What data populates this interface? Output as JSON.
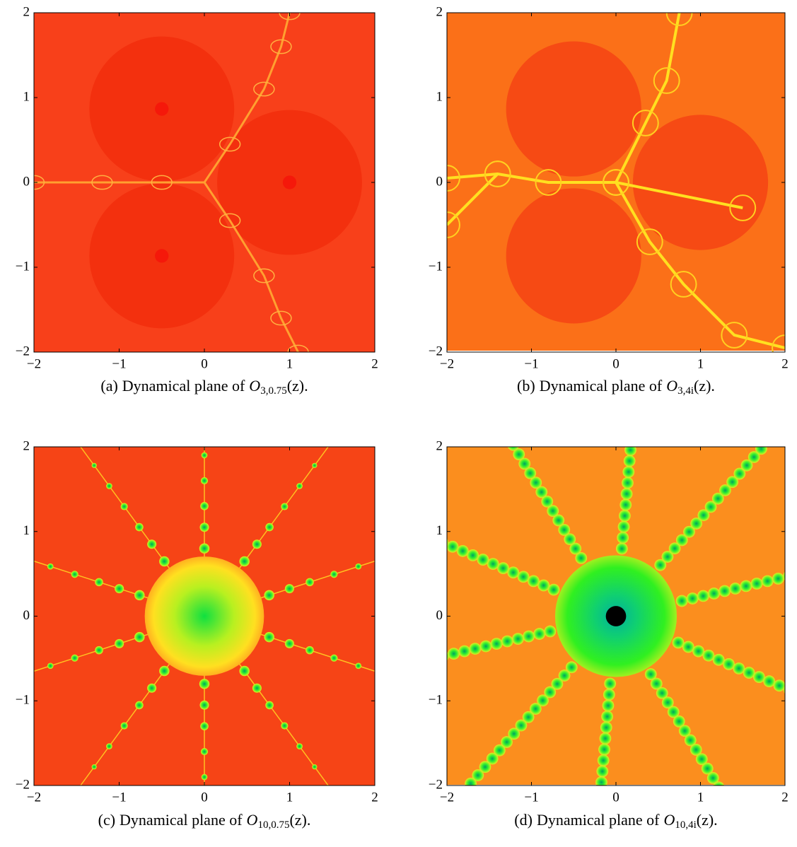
{
  "figures": [
    {
      "xlim": [
        -2,
        2
      ],
      "ylim": [
        -2,
        2
      ],
      "xticks": [
        {
          "value": -2,
          "label": "−2"
        },
        {
          "value": -1,
          "label": "−1"
        },
        0,
        1,
        2
      ],
      "yticks": [
        {
          "value": -2,
          "label": "−2"
        },
        {
          "value": -1,
          "label": "−1"
        },
        0,
        1,
        2
      ],
      "caption": {
        "tag": "(a)",
        "text": "Dynamical plane of",
        "symbol": "O",
        "subscript": "3,0.75",
        "argument": "(z)."
      }
    },
    {
      "xlim": [
        -2,
        2
      ],
      "ylim": [
        -2,
        2
      ],
      "xticks": [
        {
          "value": -2,
          "label": "−2"
        },
        {
          "value": -1,
          "label": "−1"
        },
        0,
        1,
        2
      ],
      "yticks": [
        {
          "value": -2,
          "label": "−2"
        },
        {
          "value": -1,
          "label": "−1"
        },
        0,
        1,
        2
      ],
      "caption": {
        "tag": "(b)",
        "text": "Dynamical plane of",
        "symbol": "O",
        "subscript": "3,4i",
        "argument": "(z)."
      }
    },
    {
      "xlim": [
        -2,
        2
      ],
      "ylim": [
        -2,
        2
      ],
      "xticks": [
        {
          "value": -2,
          "label": "−2"
        },
        {
          "value": -1,
          "label": "−1"
        },
        0,
        1,
        2
      ],
      "yticks": [
        {
          "value": -2,
          "label": "−2"
        },
        {
          "value": -1,
          "label": "−1"
        },
        0,
        1,
        2
      ],
      "caption": {
        "tag": "(c)",
        "text": "Dynamical plane of",
        "symbol": "O",
        "subscript": "10,0.75",
        "argument": "(z)."
      }
    },
    {
      "xlim": [
        -2,
        2
      ],
      "ylim": [
        -2,
        2
      ],
      "xticks": [
        {
          "value": -2,
          "label": "−2"
        },
        {
          "value": -1,
          "label": "−1"
        },
        0,
        1,
        2
      ],
      "yticks": [
        {
          "value": -2,
          "label": "−2"
        },
        {
          "value": -1,
          "label": "−1"
        },
        0,
        1,
        2
      ],
      "caption": {
        "tag": "(d)",
        "text": "Dynamical plane of",
        "symbol": "O",
        "subscript": "10,4i",
        "argument": "(z)."
      }
    }
  ]
}
